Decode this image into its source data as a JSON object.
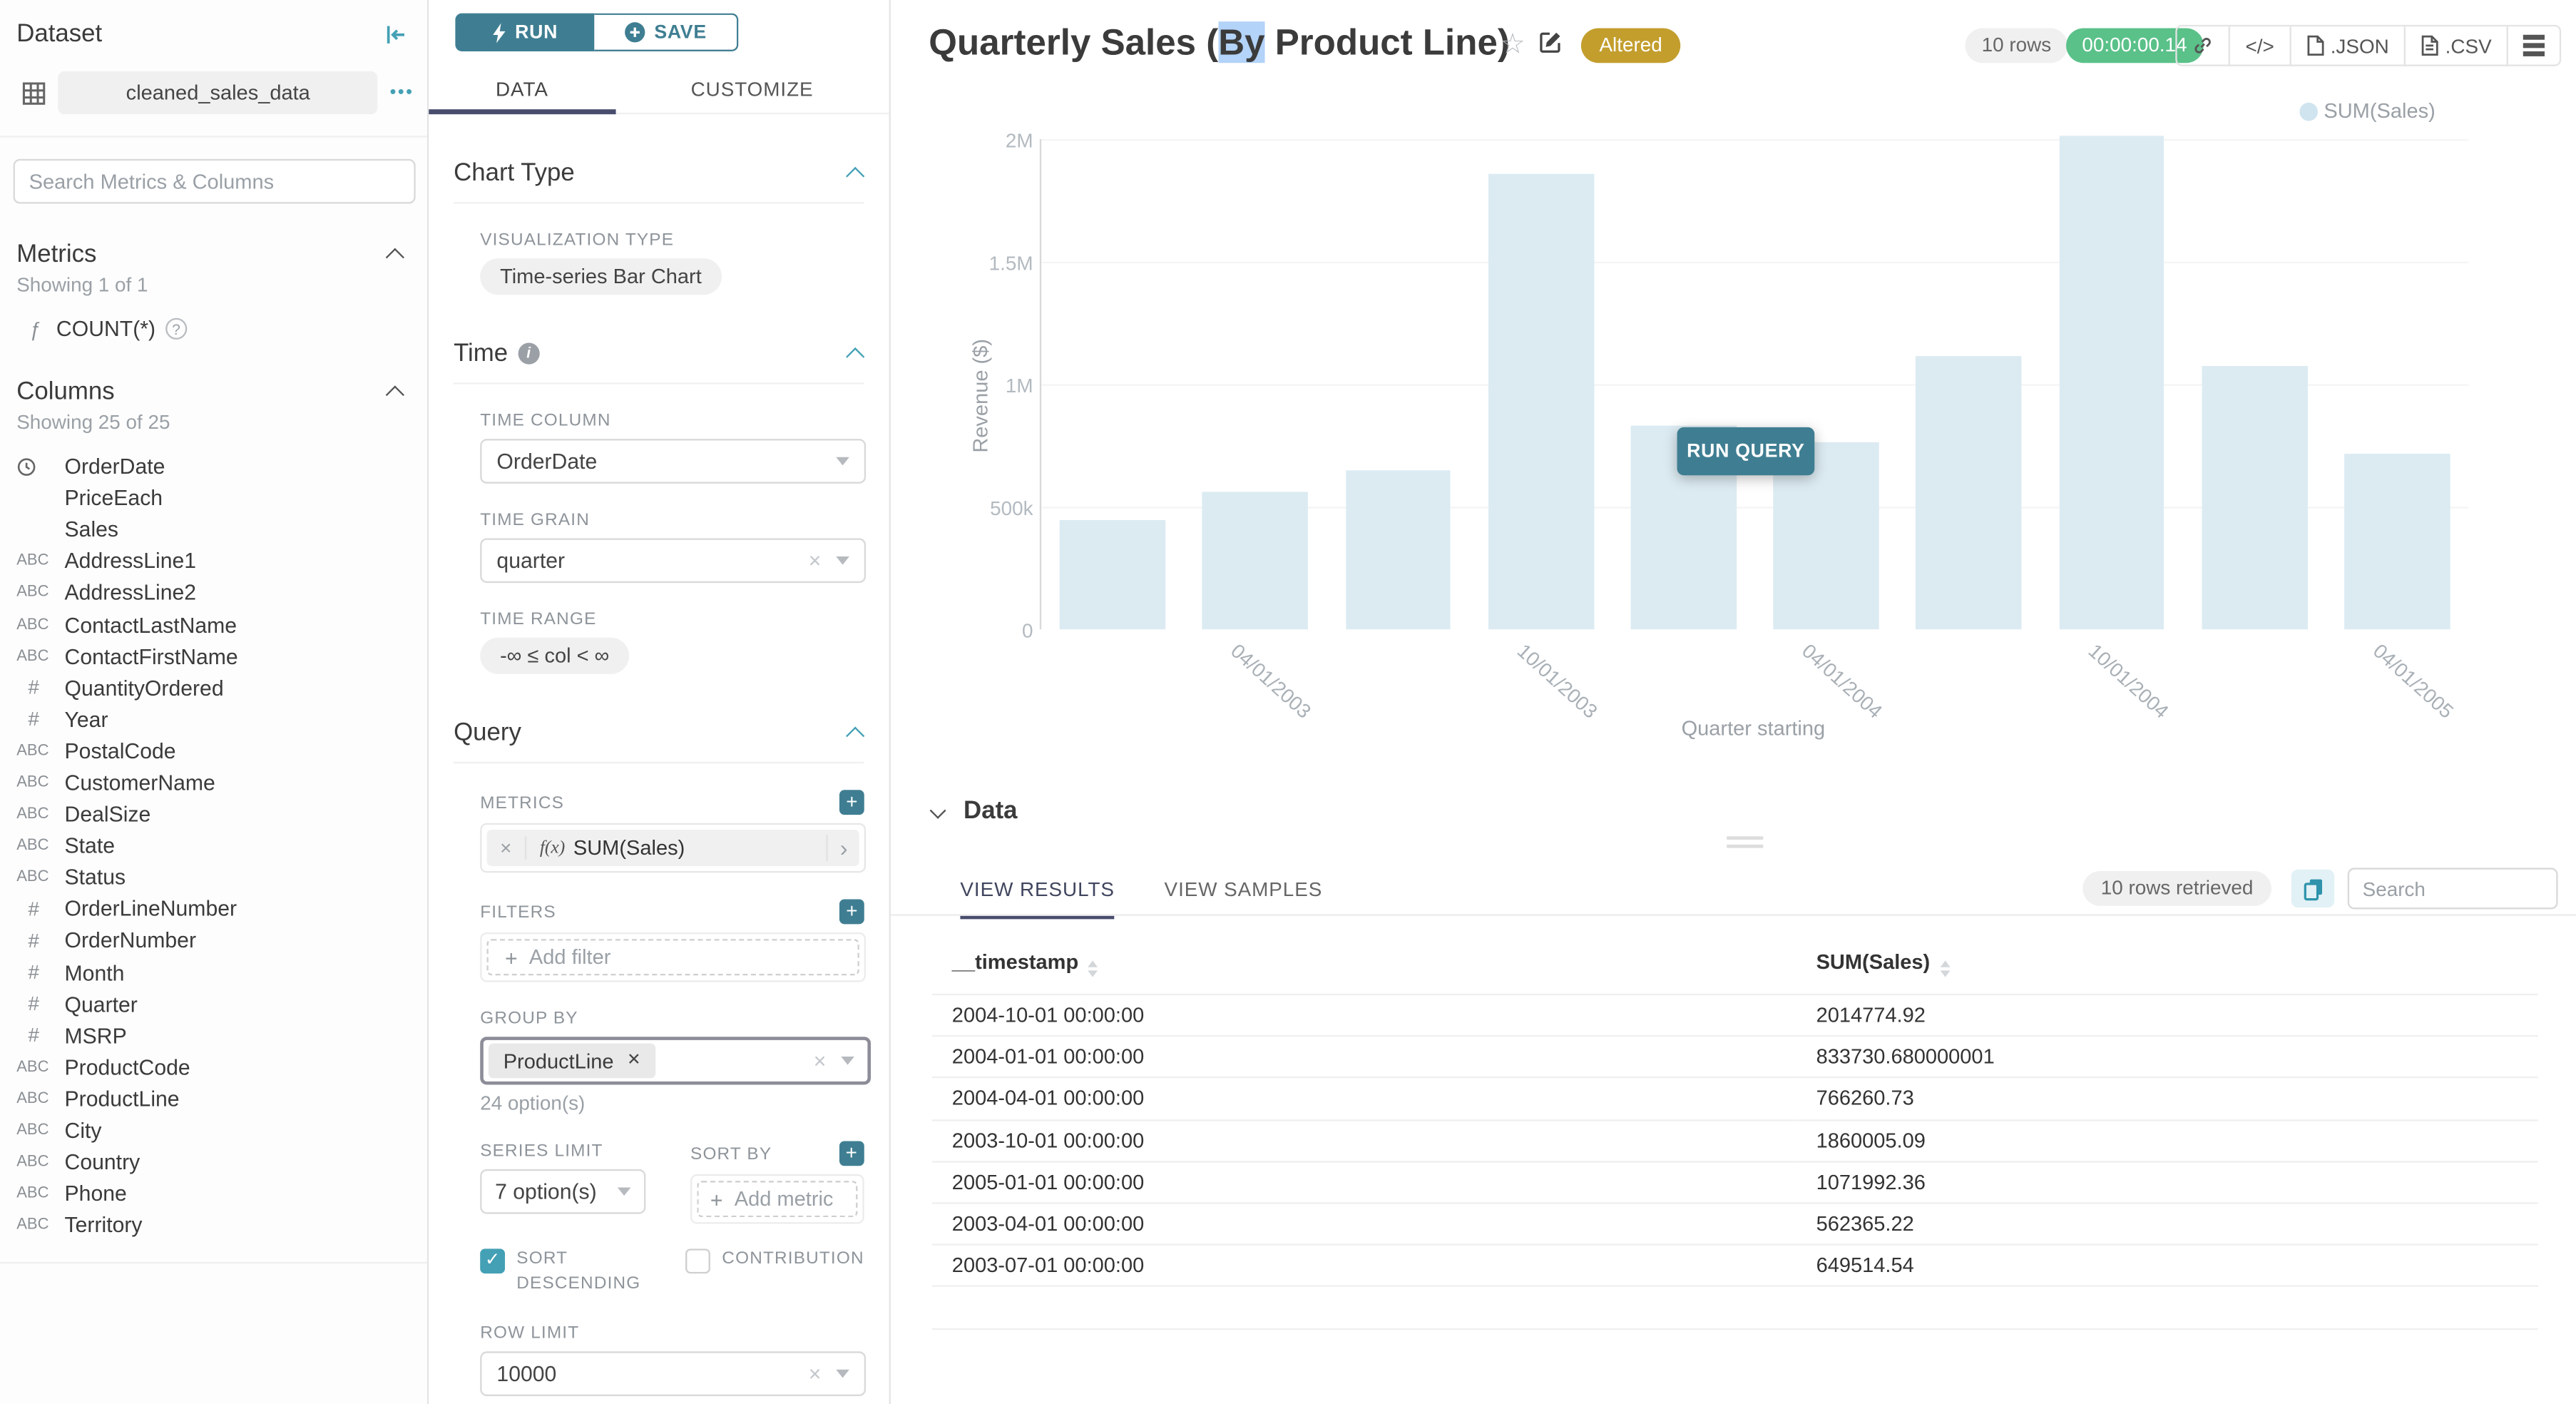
{
  "colors": {
    "accent": "#3f7e92",
    "accent_light": "#44a0b5",
    "navy": "#494d6d",
    "green": "#5ac189",
    "gold": "#c39e2d",
    "bar": "#dcebf2",
    "selection": "#b3d3f8"
  },
  "dataset_panel": {
    "title": "Dataset",
    "name": "cleaned_sales_data",
    "options_icon": "•••",
    "search_placeholder": "Search Metrics & Columns",
    "metrics": {
      "heading": "Metrics",
      "showing": "Showing 1 of 1",
      "items": [
        {
          "icon": "function",
          "label": "COUNT(*)"
        }
      ]
    },
    "columns": {
      "heading": "Columns",
      "showing": "Showing 25 of 25",
      "items": [
        {
          "icon": "clock",
          "label": "OrderDate"
        },
        {
          "icon": "none",
          "label": "PriceEach"
        },
        {
          "icon": "none",
          "label": "Sales"
        },
        {
          "icon": "abc",
          "label": "AddressLine1"
        },
        {
          "icon": "abc",
          "label": "AddressLine2"
        },
        {
          "icon": "abc",
          "label": "ContactLastName"
        },
        {
          "icon": "abc",
          "label": "ContactFirstName"
        },
        {
          "icon": "hash",
          "label": "QuantityOrdered"
        },
        {
          "icon": "hash",
          "label": "Year"
        },
        {
          "icon": "abc",
          "label": "PostalCode"
        },
        {
          "icon": "abc",
          "label": "CustomerName"
        },
        {
          "icon": "abc",
          "label": "DealSize"
        },
        {
          "icon": "abc",
          "label": "State"
        },
        {
          "icon": "abc",
          "label": "Status"
        },
        {
          "icon": "hash",
          "label": "OrderLineNumber"
        },
        {
          "icon": "hash",
          "label": "OrderNumber"
        },
        {
          "icon": "hash",
          "label": "Month"
        },
        {
          "icon": "hash",
          "label": "Quarter"
        },
        {
          "icon": "hash",
          "label": "MSRP"
        },
        {
          "icon": "abc",
          "label": "ProductCode"
        },
        {
          "icon": "abc",
          "label": "ProductLine"
        },
        {
          "icon": "abc",
          "label": "City"
        },
        {
          "icon": "abc",
          "label": "Country"
        },
        {
          "icon": "abc",
          "label": "Phone"
        },
        {
          "icon": "abc",
          "label": "Territory"
        }
      ]
    }
  },
  "control_panel": {
    "run_label": "RUN",
    "save_label": "SAVE",
    "tabs": [
      "DATA",
      "CUSTOMIZE"
    ],
    "chart_type": {
      "heading": "Chart Type",
      "viz_type_label": "VISUALIZATION TYPE",
      "viz_type_value": "Time-series Bar Chart"
    },
    "time": {
      "heading": "Time",
      "time_column_label": "TIME COLUMN",
      "time_column": "OrderDate",
      "time_grain_label": "TIME GRAIN",
      "time_grain": "quarter",
      "time_range_label": "TIME RANGE",
      "time_range": "-∞ ≤ col < ∞"
    },
    "query": {
      "heading": "Query",
      "metrics_label": "METRICS",
      "metric_fx": "f(x)",
      "metric": "SUM(Sales)",
      "filters_label": "FILTERS",
      "add_filter": "Add filter",
      "group_by_label": "GROUP BY",
      "group_by_value": "ProductLine",
      "group_by_hint": "24 option(s)",
      "series_limit_label": "SERIES LIMIT",
      "series_limit": "7 option(s)",
      "sort_by_label": "SORT BY",
      "add_metric": "Add metric",
      "sort_descending_label": "SORT DESCENDING",
      "contribution_label": "CONTRIBUTION",
      "row_limit_label": "ROW LIMIT",
      "row_limit": "10000"
    }
  },
  "header": {
    "title_prefix": "Quarterly Sales (",
    "title_selected": "By",
    "title_suffix": " Product Line)",
    "altered_badge": "Altered",
    "rows_pill": "10 rows",
    "timer": "00:00:00.14",
    "export_json": ".JSON",
    "export_csv": ".CSV"
  },
  "run_query_label": "RUN QUERY",
  "chart_data": {
    "type": "bar",
    "legend": [
      "SUM(Sales)"
    ],
    "legend_position": "top-right",
    "x": [
      "2003-01-01",
      "2003-04-01",
      "2003-07-01",
      "2003-10-01",
      "2004-01-01",
      "2004-04-01",
      "2004-07-01",
      "2004-10-01",
      "2005-01-01",
      "2005-04-01"
    ],
    "series": [
      {
        "name": "SUM(Sales)",
        "values": [
          443000,
          562365.22,
          649514.54,
          1860005.09,
          833730.68,
          766260.73,
          1115000,
          2014774.92,
          1071992.36,
          718000
        ]
      }
    ],
    "xlabel": "Quarter starting",
    "ylabel": "Revenue ($)",
    "ylim": [
      0,
      2000000
    ],
    "y_ticks": [
      "0",
      "500k",
      "1M",
      "1.5M",
      "2M"
    ],
    "x_tick_labels": [
      "04/01/2003",
      "10/01/2003",
      "04/01/2004",
      "10/01/2004",
      "04/01/2005"
    ],
    "x_tick_slots": [
      1,
      3,
      5,
      7,
      9
    ],
    "grid": true,
    "bar_color": "#dcebf2"
  },
  "data_panel": {
    "heading": "Data",
    "tabs": [
      "VIEW RESULTS",
      "VIEW SAMPLES"
    ],
    "rows_retrieved": "10 rows retrieved",
    "search_placeholder": "Search",
    "columns": [
      "__timestamp",
      "SUM(Sales)"
    ],
    "rows": [
      [
        "2004-10-01 00:00:00",
        "2014774.92"
      ],
      [
        "2004-01-01 00:00:00",
        "833730.680000001"
      ],
      [
        "2004-04-01 00:00:00",
        "766260.73"
      ],
      [
        "2003-10-01 00:00:00",
        "1860005.09"
      ],
      [
        "2005-01-01 00:00:00",
        "1071992.36"
      ],
      [
        "2003-04-01 00:00:00",
        "562365.22"
      ],
      [
        "2003-07-01 00:00:00",
        "649514.54"
      ]
    ]
  }
}
